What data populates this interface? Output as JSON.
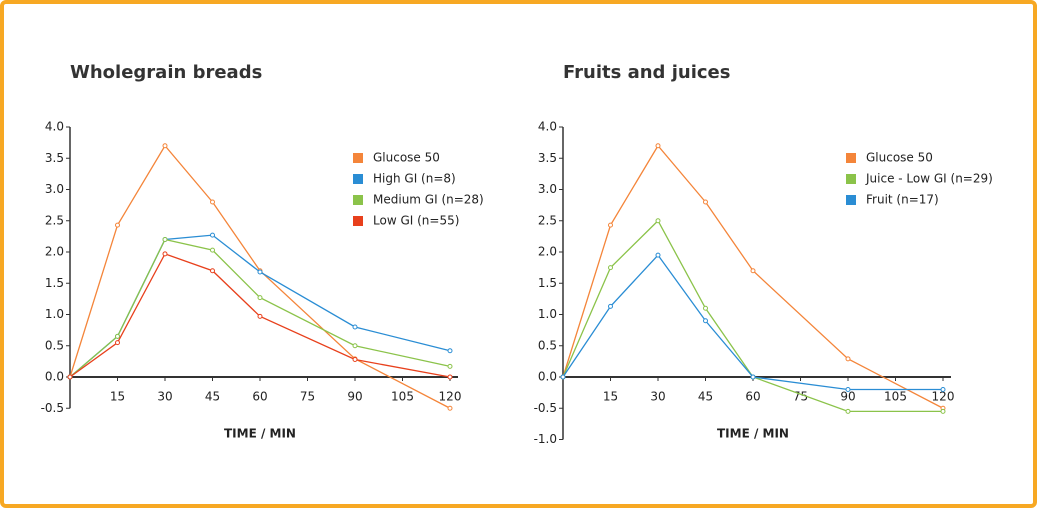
{
  "chart_data": [
    {
      "type": "line",
      "title": "Wholegrain breads",
      "xlabel": "TIME / MIN",
      "x": [
        0,
        15,
        30,
        45,
        60,
        90,
        120
      ],
      "xlim": [
        0,
        120
      ],
      "xticks": [
        15,
        30,
        45,
        60,
        75,
        90,
        105,
        120
      ],
      "ylim": [
        -0.5,
        4.0
      ],
      "yticks": [
        -0.5,
        {
          "value": 0,
          "label": "0.0"
        },
        0.5,
        {
          "value": 1,
          "label": "1.0"
        },
        1.5,
        {
          "value": 2,
          "label": "2.0"
        },
        2.5,
        {
          "value": 3,
          "label": "3.0"
        },
        3.5,
        {
          "value": 4,
          "label": "4.0"
        }
      ],
      "series": [
        {
          "name": "Glucose 50",
          "color": "#f4853a",
          "values": [
            0,
            2.43,
            3.7,
            2.8,
            1.7,
            0.29,
            -0.5
          ]
        },
        {
          "name": "High GI (n=8)",
          "color": "#2a8dd4",
          "values": [
            0,
            0.65,
            2.2,
            2.27,
            1.68,
            0.8,
            0.42
          ]
        },
        {
          "name": "Medium GI (n=28)",
          "color": "#8bc34a",
          "values": [
            0,
            0.65,
            2.2,
            2.03,
            1.27,
            0.5,
            0.17
          ]
        },
        {
          "name": "Low GI (n=55)",
          "color": "#e8401c",
          "values": [
            0,
            0.55,
            1.97,
            1.7,
            0.97,
            0.28,
            0
          ]
        }
      ]
    },
    {
      "type": "line",
      "title": "Fruits and juices",
      "xlabel": "TIME / MIN",
      "x": [
        0,
        15,
        30,
        45,
        60,
        90,
        120
      ],
      "xlim": [
        0,
        120
      ],
      "xticks": [
        15,
        30,
        45,
        60,
        75,
        90,
        105,
        120
      ],
      "ylim": [
        -1.0,
        4.0
      ],
      "yticks": [
        {
          "value": -1,
          "label": "-1.0"
        },
        -0.5,
        {
          "value": 0,
          "label": "0.0"
        },
        0.5,
        {
          "value": 1,
          "label": "1.0"
        },
        1.5,
        {
          "value": 2,
          "label": "2.0"
        },
        2.5,
        {
          "value": 3,
          "label": "3.0"
        },
        3.5,
        {
          "value": 4,
          "label": "4.0"
        }
      ],
      "series": [
        {
          "name": "Glucose 50",
          "color": "#f4853a",
          "values": [
            0,
            2.43,
            3.7,
            2.8,
            1.7,
            0.29,
            -0.5
          ]
        },
        {
          "name": "Juice - Low GI (n=29)",
          "color": "#8bc34a",
          "values": [
            0,
            1.75,
            2.5,
            1.1,
            0,
            -0.55,
            -0.55
          ]
        },
        {
          "name": "Fruit (n=17)",
          "color": "#2a8dd4",
          "values": [
            0,
            1.13,
            1.95,
            0.9,
            0,
            -0.2,
            -0.2
          ]
        }
      ]
    }
  ]
}
